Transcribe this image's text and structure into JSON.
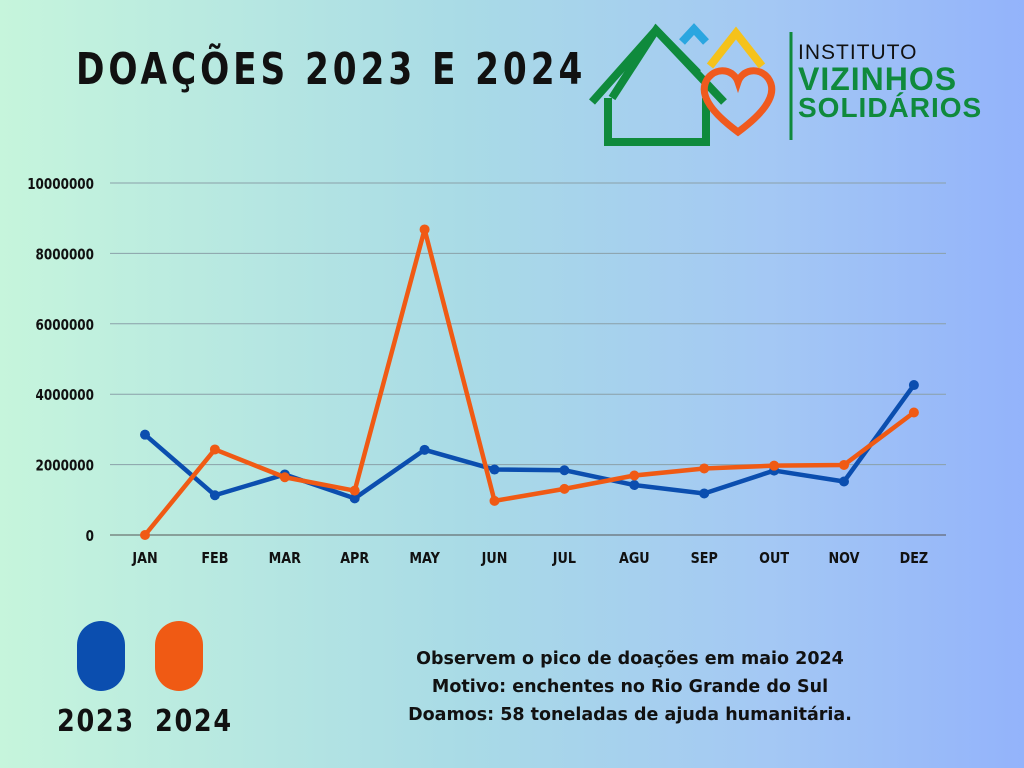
{
  "title": "DOAÇÕES 2023 E 2024",
  "logo": {
    "line1": "INSTITUTO",
    "line2": "VIZINHOS",
    "line3": "SOLIDÁRIOS",
    "colors": {
      "house": "#0f8a3c",
      "heart": "#f05a1e",
      "roof_blue": "#2aa6e0",
      "roof_yellow": "#f5c21b"
    }
  },
  "chart_data": {
    "type": "line",
    "categories": [
      "JAN",
      "FEB",
      "MAR",
      "APR",
      "MAY",
      "JUN",
      "JUL",
      "AGU",
      "SEP",
      "OUT",
      "NOV",
      "DEZ"
    ],
    "series": [
      {
        "name": "2023",
        "color": "#0b4eaf",
        "values": [
          2850000,
          1130000,
          1720000,
          1040000,
          2420000,
          1860000,
          1840000,
          1420000,
          1180000,
          1830000,
          1520000,
          4260000
        ]
      },
      {
        "name": "2024",
        "color": "#f05a14",
        "values": [
          0,
          2430000,
          1640000,
          1260000,
          8680000,
          970000,
          1310000,
          1690000,
          1890000,
          1970000,
          1990000,
          3480000
        ]
      }
    ],
    "yticks": [
      "10000000",
      "8000000",
      "6000000",
      "4000000",
      "2000000",
      "0"
    ],
    "ylim": [
      0,
      10000000
    ],
    "grid": true,
    "legend": "bottom-left"
  },
  "note": {
    "line1": "Observem o pico de doações em maio 2024",
    "line2": "Motivo: enchentes no Rio Grande do Sul",
    "line3": "Doamos: 58 toneladas de ajuda humanitária."
  }
}
